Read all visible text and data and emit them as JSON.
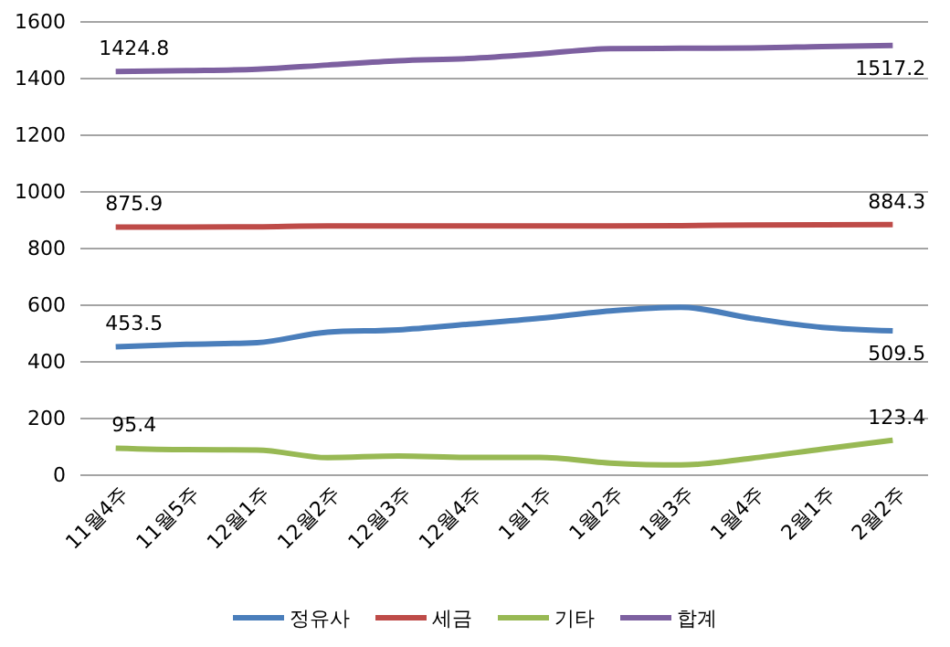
{
  "chart_data": {
    "type": "line",
    "categories": [
      "11월4주",
      "11월5주",
      "12월1주",
      "12월2주",
      "12월3주",
      "12월4주",
      "1월1주",
      "1월2주",
      "1월3주",
      "1월4주",
      "2월1주",
      "2월2주"
    ],
    "series": [
      {
        "name": "정유사",
        "color": "#4a7ebb",
        "values": [
          453.5,
          462,
          468,
          505,
          513,
          533,
          554,
          580,
          593,
          554,
          522,
          509.5
        ],
        "value_labels": [
          "453.5",
          null,
          null,
          null,
          null,
          null,
          null,
          null,
          null,
          null,
          null,
          "509.5"
        ]
      },
      {
        "name": "세금",
        "color": "#be4b48",
        "values": [
          875.9,
          876,
          877,
          880,
          880,
          880,
          880,
          880,
          881,
          883,
          884,
          884.3
        ],
        "value_labels": [
          "875.9",
          null,
          null,
          null,
          null,
          null,
          null,
          null,
          null,
          null,
          null,
          "884.3"
        ]
      },
      {
        "name": "기타",
        "color": "#98b954",
        "values": [
          95.4,
          90,
          89,
          62,
          68,
          63,
          63,
          43,
          36,
          60,
          92,
          123.4
        ],
        "value_labels": [
          "95.4",
          null,
          null,
          null,
          null,
          null,
          null,
          null,
          null,
          null,
          null,
          "123.4"
        ]
      },
      {
        "name": "합계",
        "color": "#7d60a0",
        "values": [
          1424.8,
          1428,
          1433,
          1448,
          1463,
          1471,
          1487,
          1506,
          1507,
          1508,
          1513,
          1517.2
        ],
        "value_labels": [
          "1424.8",
          null,
          null,
          null,
          null,
          null,
          null,
          null,
          null,
          null,
          null,
          "1517.2"
        ]
      }
    ],
    "ylim": [
      0,
      1600
    ],
    "yticks": [
      0,
      200,
      400,
      600,
      800,
      1000,
      1200,
      1400,
      1600
    ],
    "grid": "y",
    "legend": "bottom",
    "marker": "none",
    "line_style": "solid"
  }
}
